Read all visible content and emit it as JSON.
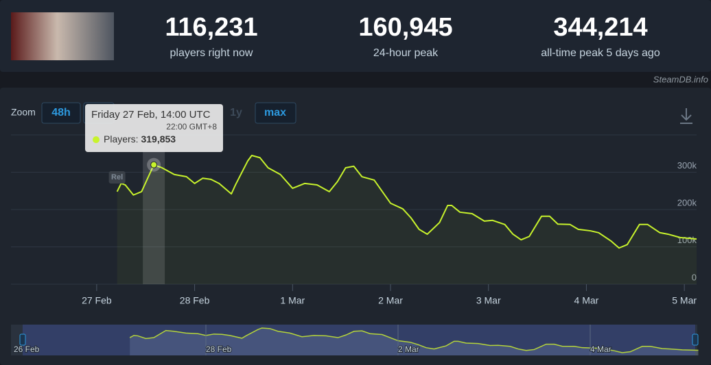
{
  "header": {
    "stats": [
      {
        "value": "116,231",
        "label": "players right now"
      },
      {
        "value": "160,945",
        "label": "24-hour peak"
      },
      {
        "value": "344,214",
        "label": "all-time peak 5 days ago"
      }
    ],
    "source": "SteamDB.info"
  },
  "zoom": {
    "label": "Zoom",
    "buttons": [
      "48h",
      "1y",
      "max"
    ]
  },
  "chart_data": {
    "type": "line",
    "color": "#c8f32c",
    "x": [
      "27 Feb 05:00",
      "27 Feb 06:00",
      "27 Feb 07:00",
      "27 Feb 09:00",
      "27 Feb 11:00",
      "27 Feb 14:00",
      "27 Feb 16:00",
      "27 Feb 19:00",
      "27 Feb 22:00",
      "28 Feb 00:00",
      "28 Feb 02:00",
      "28 Feb 04:00",
      "28 Feb 06:00",
      "28 Feb 09:00",
      "28 Feb 10:00",
      "28 Feb 13:00",
      "28 Feb 14:00",
      "28 Feb 16:00",
      "28 Feb 18:00",
      "28 Feb 21:00",
      "1 Mar 00:00",
      "1 Mar 03:00",
      "1 Mar 06:00",
      "1 Mar 09:00",
      "1 Mar 11:00",
      "1 Mar 13:00",
      "1 Mar 15:00",
      "1 Mar 17:00",
      "1 Mar 20:00",
      "2 Mar 00:00",
      "2 Mar 03:00",
      "2 Mar 05:00",
      "2 Mar 07:00",
      "2 Mar 09:00",
      "2 Mar 12:00",
      "2 Mar 14:00",
      "2 Mar 15:00",
      "2 Mar 17:00",
      "2 Mar 20:00",
      "2 Mar 23:00",
      "3 Mar 01:00",
      "3 Mar 04:00",
      "3 Mar 06:00",
      "3 Mar 08:00",
      "3 Mar 10:00",
      "3 Mar 13:00",
      "3 Mar 15:00",
      "3 Mar 17:00",
      "3 Mar 20:00",
      "3 Mar 22:00",
      "4 Mar 01:00",
      "4 Mar 03:00",
      "4 Mar 06:00",
      "4 Mar 08:00",
      "4 Mar 10:00",
      "4 Mar 13:00",
      "4 Mar 15:00",
      "4 Mar 18:00",
      "4 Mar 20:00",
      "4 Mar 23:00",
      "5 Mar 03:00"
    ],
    "values": [
      248000,
      270000,
      266000,
      239000,
      248000,
      319853,
      312000,
      294000,
      288000,
      270000,
      284000,
      281000,
      270000,
      242000,
      266000,
      330000,
      345000,
      339000,
      312000,
      294000,
      257000,
      270000,
      266000,
      248000,
      275000,
      312000,
      316000,
      288000,
      279000,
      217000,
      202000,
      178000,
      147000,
      134000,
      165000,
      211000,
      211000,
      193000,
      189000,
      169000,
      171000,
      160000,
      134000,
      119000,
      128000,
      182000,
      182000,
      161000,
      160000,
      147000,
      143000,
      138000,
      116000,
      97000,
      106000,
      160000,
      160000,
      138000,
      134000,
      125000,
      121000
    ],
    "value_labels": [
      null,
      null,
      null,
      null,
      null,
      "319,853",
      null,
      null,
      null,
      null,
      null,
      null,
      null,
      null,
      null,
      null,
      null,
      null,
      null,
      null,
      null,
      null,
      null,
      null,
      null,
      null,
      null,
      null,
      null,
      null,
      null,
      null,
      null,
      null,
      null,
      null,
      null,
      null,
      null,
      null,
      null,
      null,
      null,
      null,
      null,
      null,
      null,
      null,
      null,
      null,
      null,
      null,
      null,
      null,
      null,
      null,
      null,
      null,
      null,
      null,
      null
    ],
    "xlim": [
      "26 Feb 03:00",
      "5 Mar 03:00"
    ],
    "xticks": [
      "27 Feb",
      "28 Feb",
      "1 Mar",
      "2 Mar",
      "3 Mar",
      "4 Mar",
      "5 Mar"
    ],
    "ylim": [
      0,
      400000
    ],
    "yticks": [
      0,
      {
        "value": 100000,
        "label": "100k"
      },
      {
        "value": 200000,
        "label": "200k"
      },
      {
        "value": 300000,
        "label": "300k"
      }
    ],
    "grid": true,
    "annotation": "Rel",
    "tooltip": {
      "date": "Friday 27 Feb, 14:00 UTC",
      "local": "22:00 GMT+8",
      "label": "Players:"
    },
    "navigator_labels": [
      "26 Feb",
      "28 Feb",
      "2 Mar",
      "4 Mar"
    ]
  }
}
